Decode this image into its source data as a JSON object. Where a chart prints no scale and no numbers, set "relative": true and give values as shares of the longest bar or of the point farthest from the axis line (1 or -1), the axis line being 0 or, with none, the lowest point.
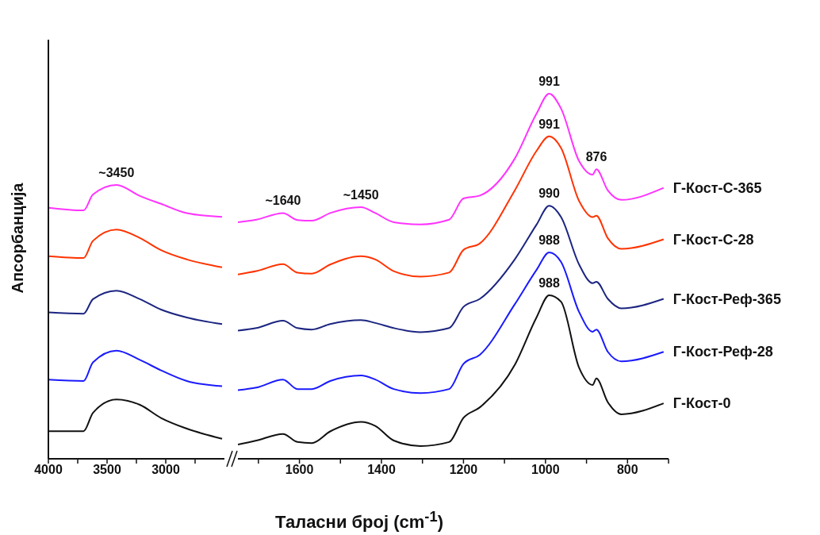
{
  "chart_data": [
    {
      "type": "line",
      "relative": true,
      "ylabel": "Апсорбанција",
      "xlim": [
        4000,
        2500
      ],
      "xticks": [
        4000,
        {
          "value": 3750,
          "label": null
        },
        3500,
        {
          "value": 3250,
          "label": null
        },
        3000,
        {
          "value": 2750,
          "label": null
        }
      ],
      "x": [
        4000,
        3700,
        3620,
        3420,
        3220,
        3040,
        2820,
        2520
      ],
      "series": [
        {
          "color": "#ff33ff",
          "values": [
            0.917,
            0.907,
            0.965,
            1.0,
            0.96,
            0.931,
            0.897,
            0.883
          ]
        },
        {
          "color": "#ff3300",
          "values": [
            0.74,
            0.733,
            0.796,
            0.837,
            0.806,
            0.762,
            0.728,
            0.699
          ]
        },
        {
          "color": "#1c2580",
          "values": [
            0.535,
            0.53,
            0.583,
            0.614,
            0.583,
            0.545,
            0.516,
            0.492
          ]
        },
        {
          "color": "#1a1aff",
          "values": [
            0.289,
            0.284,
            0.352,
            0.395,
            0.361,
            0.323,
            0.284,
            0.265
          ]
        },
        {
          "color": "#111111",
          "values": [
            0.101,
            0.101,
            0.168,
            0.217,
            0.197,
            0.149,
            0.11,
            0.073
          ]
        }
      ],
      "annotations": [
        {
          "text": "~3450",
          "x": 3420,
          "y": 1.0
        }
      ]
    },
    {
      "type": "line",
      "relative": true,
      "xlabel": "Таласни број (cm$^{-1}$)",
      "xlim": [
        1750,
        700
      ],
      "xticks": [
        {
          "value": 1700,
          "label": null
        },
        1600,
        {
          "value": 1500,
          "label": null
        },
        1400,
        {
          "value": 1300,
          "label": null
        },
        1200,
        {
          "value": 1100,
          "label": null
        },
        1000,
        {
          "value": 900,
          "label": null
        },
        800,
        {
          "value": 700,
          "label": null
        }
      ],
      "x": [
        1750,
        1705,
        1640,
        1605,
        1570,
        1525,
        1450,
        1415,
        1370,
        1305,
        1235,
        1200,
        1160,
        1075,
        1022,
        991,
        962,
        918,
        885,
        876,
        848,
        815,
        712
      ],
      "series": [
        {
          "name": "Г-Кост-С-365",
          "color": "#ff33ff",
          "values": [
            0.648,
            0.655,
            0.673,
            0.654,
            0.652,
            0.673,
            0.689,
            0.673,
            0.648,
            0.642,
            0.655,
            0.713,
            0.721,
            0.822,
            0.945,
            1.0,
            0.959,
            0.815,
            0.778,
            0.793,
            0.735,
            0.709,
            0.742
          ]
        },
        {
          "name": "Г-Кост-С-28",
          "color": "#ff3300",
          "values": [
            0.505,
            0.514,
            0.533,
            0.51,
            0.507,
            0.532,
            0.555,
            0.546,
            0.514,
            0.499,
            0.51,
            0.572,
            0.59,
            0.735,
            0.843,
            0.883,
            0.851,
            0.706,
            0.662,
            0.666,
            0.604,
            0.575,
            0.601
          ]
        },
        {
          "name": "Г-Кост-Реф-365",
          "color": "#1c2580",
          "values": [
            0.351,
            0.358,
            0.378,
            0.358,
            0.354,
            0.369,
            0.38,
            0.372,
            0.358,
            0.347,
            0.358,
            0.416,
            0.438,
            0.546,
            0.641,
            0.693,
            0.662,
            0.532,
            0.481,
            0.485,
            0.438,
            0.412,
            0.438
          ]
        },
        {
          "name": "Г-Кост-Реф-28",
          "color": "#1a1aff",
          "values": [
            0.188,
            0.195,
            0.217,
            0.191,
            0.191,
            0.213,
            0.228,
            0.217,
            0.191,
            0.18,
            0.191,
            0.26,
            0.285,
            0.423,
            0.517,
            0.565,
            0.539,
            0.402,
            0.348,
            0.354,
            0.293,
            0.267,
            0.293
          ]
        },
        {
          "name": "Г-Кост-0",
          "color": "#111111",
          "values": [
            0.039,
            0.05,
            0.068,
            0.046,
            0.043,
            0.075,
            0.101,
            0.09,
            0.05,
            0.035,
            0.046,
            0.112,
            0.141,
            0.257,
            0.387,
            0.448,
            0.43,
            0.249,
            0.202,
            0.22,
            0.155,
            0.122,
            0.152
          ]
        }
      ],
      "annotations": [
        {
          "text": "~1640",
          "x": 1640,
          "y": 0.673
        },
        {
          "text": "~1450",
          "x": 1450,
          "y": 0.689
        },
        {
          "text": "991",
          "x": 991,
          "y": 1.0
        },
        {
          "text": "991",
          "x": 991,
          "y": 0.883
        },
        {
          "text": "990",
          "x": 991,
          "y": 0.693
        },
        {
          "text": "988",
          "x": 991,
          "y": 0.565
        },
        {
          "text": "988",
          "x": 991,
          "y": 0.448
        },
        {
          "text": "876",
          "x": 876,
          "y": 0.793
        }
      ]
    }
  ]
}
